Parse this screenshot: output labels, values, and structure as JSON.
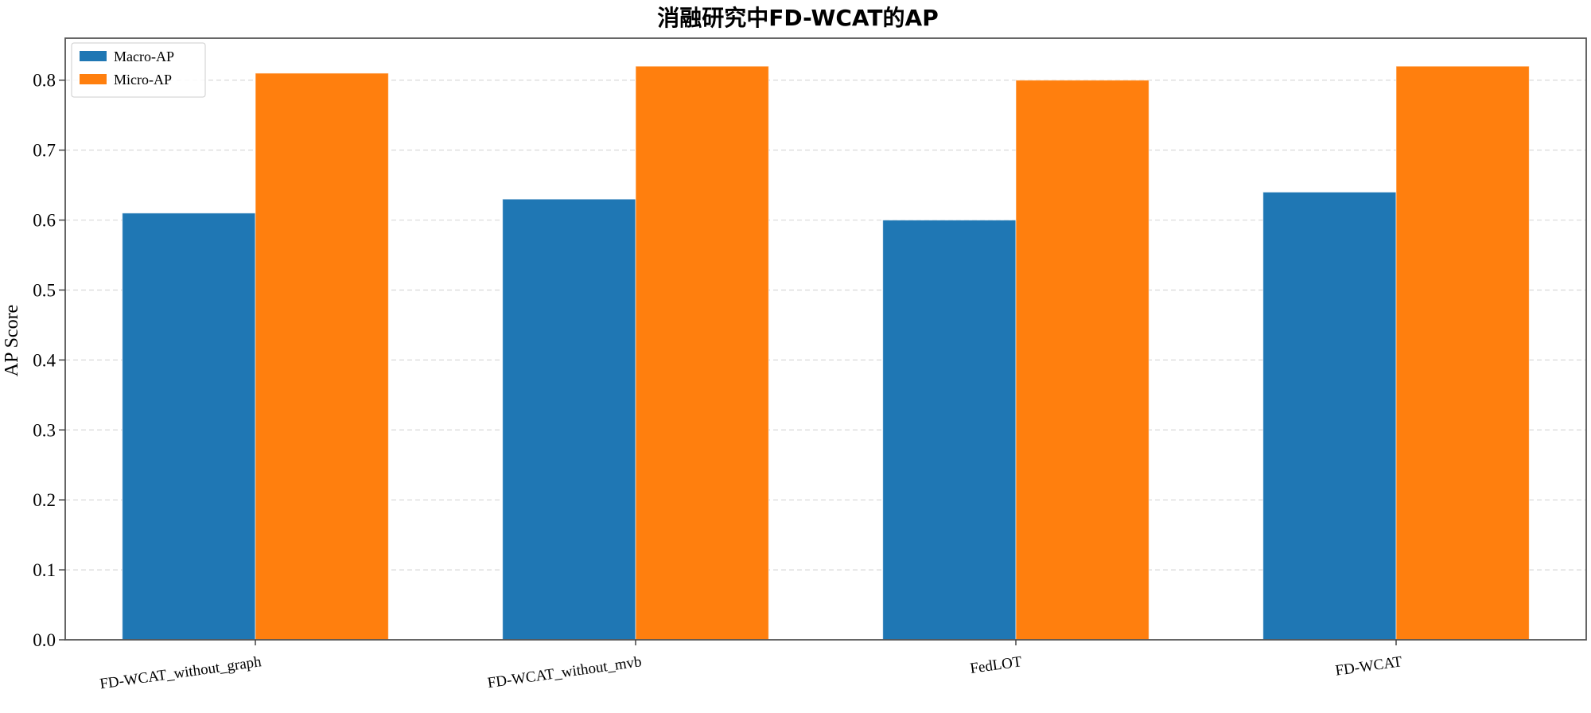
{
  "chart_data": {
    "type": "bar",
    "title": "消融研究中FD-WCAT的AP",
    "xlabel": "",
    "ylabel": "AP Score",
    "categories": [
      "FD-WCAT_without_graph",
      "FD-WCAT_without_mvb",
      "FedLOT",
      "FD-WCAT"
    ],
    "series": [
      {
        "name": "Macro-AP",
        "color": "#1f77b4",
        "values": [
          0.61,
          0.63,
          0.6,
          0.64
        ]
      },
      {
        "name": "Micro-AP",
        "color": "#ff7f0e",
        "values": [
          0.81,
          0.82,
          0.8,
          0.82
        ]
      }
    ],
    "ylim": [
      0.0,
      0.86
    ],
    "yticks": [
      "0.0",
      "0.1",
      "0.2",
      "0.3",
      "0.4",
      "0.5",
      "0.6",
      "0.7",
      "0.8"
    ],
    "grid": "horizontal-dashed",
    "legend_position": "top-left"
  }
}
